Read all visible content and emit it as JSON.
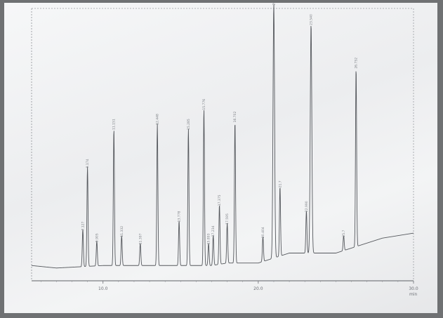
{
  "chart_data": {
    "type": "line",
    "title": "",
    "xlabel": "",
    "ylabel": "",
    "x_unit_label": "min",
    "xlim": [
      5.4,
      30.0
    ],
    "ylim": [
      0,
      100
    ],
    "x_ticks": [
      {
        "value": 10.0,
        "label": "10.0"
      },
      {
        "value": 20.0,
        "label": "20.0"
      },
      {
        "value": 30.0,
        "label": "30.0"
      }
    ],
    "baseline": [
      [
        5.4,
        5
      ],
      [
        7,
        4
      ],
      [
        10,
        5
      ],
      [
        14,
        5
      ],
      [
        17,
        5
      ],
      [
        18,
        6
      ],
      [
        20,
        6
      ],
      [
        21,
        8
      ],
      [
        22,
        10
      ],
      [
        24,
        10
      ],
      [
        25,
        10
      ],
      [
        26,
        12
      ],
      [
        27,
        14
      ],
      [
        28,
        16
      ],
      [
        29,
        17
      ],
      [
        30,
        18
      ]
    ],
    "peaks": [
      {
        "label": "7.127",
        "rt": 8.7,
        "height": 15
      },
      {
        "label": "9.174",
        "rt": 9.0,
        "height": 40
      },
      {
        "label": "9.905",
        "rt": 9.6,
        "height": 10
      },
      {
        "label": "11.151",
        "rt": 10.7,
        "height": 55
      },
      {
        "label": "11.332",
        "rt": 11.2,
        "height": 12
      },
      {
        "label": "11.397",
        "rt": 12.4,
        "height": 9
      },
      {
        "label": "12.448",
        "rt": 13.5,
        "height": 57
      },
      {
        "label": "13.778",
        "rt": 14.9,
        "height": 18
      },
      {
        "label": "15.285",
        "rt": 15.5,
        "height": 55
      },
      {
        "label": "15.776",
        "rt": 16.5,
        "height": 63
      },
      {
        "label": "15.893",
        "rt": 16.8,
        "height": 9
      },
      {
        "label": "17.234",
        "rt": 17.1,
        "height": 12
      },
      {
        "label": "17.375",
        "rt": 17.5,
        "height": 24
      },
      {
        "label": "17.595",
        "rt": 18.0,
        "height": 16
      },
      {
        "label": "16.702",
        "rt": 18.5,
        "height": 57
      },
      {
        "label": "20.404",
        "rt": 20.3,
        "height": 10
      },
      {
        "label": "20.988",
        "rt": 21.0,
        "height": 102
      },
      {
        "label": "21.7",
        "rt": 21.4,
        "height": 28
      },
      {
        "label": "22.990",
        "rt": 23.1,
        "height": 17
      },
      {
        "label": "23.540",
        "rt": 23.4,
        "height": 92
      },
      {
        "label": "25.7",
        "rt": 25.5,
        "height": 6
      },
      {
        "label": "26.752",
        "rt": 26.3,
        "height": 72
      }
    ]
  }
}
